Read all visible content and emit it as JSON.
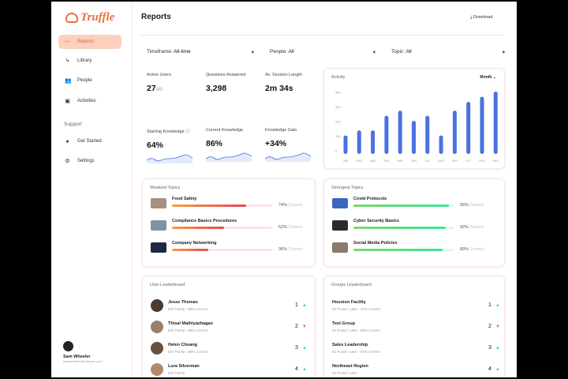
{
  "app": {
    "logo": "Truffle",
    "title": "Reports",
    "download": "Download"
  },
  "sidebar": {
    "items": [
      {
        "label": "Reports",
        "icon": "trend-icon"
      },
      {
        "label": "Library",
        "icon": "bolt-icon"
      },
      {
        "label": "People",
        "icon": "people-icon"
      },
      {
        "label": "Activities",
        "icon": "activities-icon"
      }
    ],
    "support_label": "Support",
    "support_items": [
      {
        "label": "Get Started",
        "icon": "bulb-icon"
      },
      {
        "label": "Settings",
        "icon": "gear-icon"
      }
    ],
    "user": {
      "name": "Sam Wheeler",
      "email": "samwheeler@example.com"
    }
  },
  "filters": [
    {
      "label": "Timeframe:",
      "value": "All-time"
    },
    {
      "label": "People:",
      "value": "All"
    },
    {
      "label": "Topic:",
      "value": "All"
    }
  ],
  "stats": [
    {
      "label": "Active Users",
      "value": "27",
      "suffix": "/80"
    },
    {
      "label": "Questions Answered",
      "value": "3,298"
    },
    {
      "label": "Av. Session Length",
      "value": "2m 34s"
    },
    {
      "label": "Starting Knowledge ⓘ",
      "value": "64%"
    },
    {
      "label": "Current Knowledge",
      "value": "86%"
    },
    {
      "label": "Knowledge Gain",
      "value": "+34%"
    }
  ],
  "activity": {
    "title": "Activity",
    "period": "Month ⌄"
  },
  "chart_data": {
    "type": "bar",
    "categories": [
      "JAN",
      "FEB",
      "MAR",
      "APR",
      "MAY",
      "JUN",
      "JUL",
      "AUG",
      "SEP",
      "OCT",
      "NOV",
      "DEC"
    ],
    "values": [
      105,
      140,
      140,
      240,
      275,
      205,
      240,
      105,
      275,
      335,
      370,
      405
    ],
    "yticks": [
      0,
      100,
      200,
      300,
      400
    ],
    "ylim": [
      0,
      420
    ],
    "color": "#4a72e0"
  },
  "weakest": {
    "title": "Weakest Topics",
    "items": [
      {
        "name": "Food Safety",
        "pct": 74,
        "pct_label": "74%",
        "correct": "Correct"
      },
      {
        "name": "Compliance Basics Procedures",
        "pct": 52,
        "pct_label": "52%",
        "correct": "Correct"
      },
      {
        "name": "Company Networking",
        "pct": 36,
        "pct_label": "36%",
        "correct": "Correct"
      }
    ]
  },
  "strongest": {
    "title": "Strongest Topics",
    "items": [
      {
        "name": "Covid Protocols",
        "pct": 95,
        "pct_label": "95%",
        "correct": "Correct"
      },
      {
        "name": "Cyber Security Basics",
        "pct": 92,
        "pct_label": "92%",
        "correct": "Correct"
      },
      {
        "name": "Social Media Policies",
        "pct": 89,
        "pct_label": "89%",
        "correct": "Correct"
      }
    ]
  },
  "users": {
    "title": "User Leaderboard",
    "items": [
      {
        "name": "Jesse Thomas",
        "sub": "637 Points - 98% Correct",
        "rank": "1",
        "trend": "up"
      },
      {
        "name": "Thisal Mathiyazhagan",
        "sub": "637 Points - 89% Correct",
        "rank": "2",
        "trend": "down"
      },
      {
        "name": "Helen Chuang",
        "sub": "637 Points - 88% Correct",
        "rank": "3",
        "trend": "up"
      },
      {
        "name": "Lura Silverman",
        "sub": "637 Points",
        "rank": "4",
        "trend": "up"
      }
    ]
  },
  "groups": {
    "title": "Groups Leaderboard",
    "items": [
      {
        "name": "Houston Facility",
        "sub": "52 Points / User - 97% Correct",
        "rank": "1",
        "trend": "up"
      },
      {
        "name": "Test Group",
        "sub": "52 Points / User - 95% Correct",
        "rank": "2",
        "trend": "down"
      },
      {
        "name": "Sales Leadership",
        "sub": "52 Points / User - 87% Correct",
        "rank": "3",
        "trend": "up"
      },
      {
        "name": "Northeast Region",
        "sub": "52 Points / User",
        "rank": "4",
        "trend": "up"
      }
    ]
  }
}
